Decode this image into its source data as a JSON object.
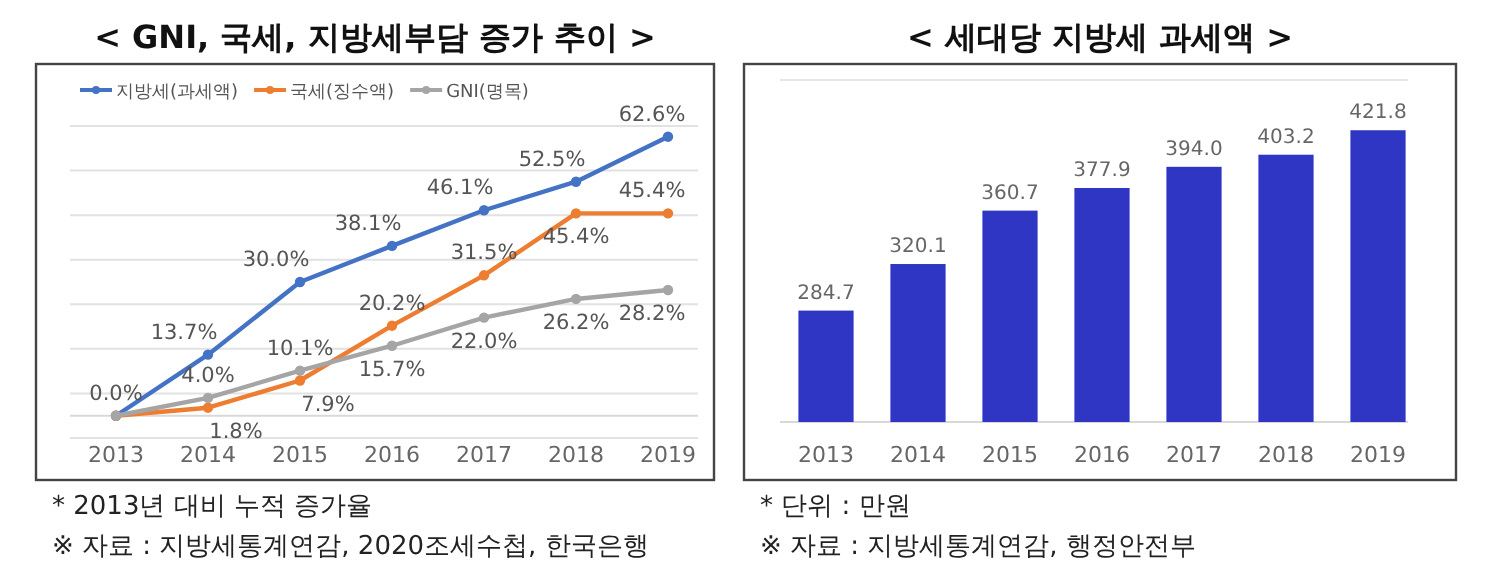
{
  "chart_data": [
    {
      "type": "line",
      "title": "< GNI, 국세, 지방세부담 증가 추이 >",
      "categories": [
        "2013",
        "2014",
        "2015",
        "2016",
        "2017",
        "2018",
        "2019"
      ],
      "series": [
        {
          "name": "지방세(과세액)",
          "color": "#4472c4",
          "values": [
            0.0,
            13.7,
            30.0,
            38.1,
            46.1,
            52.5,
            62.6
          ],
          "value_labels": [
            "0.0%",
            "13.7%",
            "30.0%",
            "38.1%",
            "46.1%",
            "52.5%",
            "62.6%"
          ]
        },
        {
          "name": "국세(징수액)",
          "color": "#ed7d31",
          "values": [
            0.0,
            1.8,
            7.9,
            20.2,
            31.5,
            45.4,
            45.4
          ],
          "value_labels": [
            null,
            "1.8%",
            "7.9%",
            "20.2%",
            "31.5%",
            "45.4%",
            "45.4%"
          ]
        },
        {
          "name": "GNI(명목)",
          "color": "#a5a5a5",
          "values": [
            0.0,
            4.0,
            10.1,
            15.7,
            22.0,
            26.2,
            28.2
          ],
          "value_labels": [
            null,
            "4.0%",
            "10.1%",
            "15.7%",
            "22.0%",
            "26.2%",
            "28.2%"
          ]
        }
      ],
      "ylim": [
        -5,
        65
      ],
      "yticks": [
        {
          "value": -5,
          "label": null
        },
        {
          "value": 5,
          "label": null
        },
        {
          "value": 15,
          "label": null
        },
        {
          "value": 25,
          "label": null
        },
        {
          "value": 35,
          "label": null
        },
        {
          "value": 45,
          "label": null
        },
        {
          "value": 55,
          "label": null
        },
        {
          "value": 65,
          "label": null
        }
      ],
      "tick_labels": "x",
      "grid": "y",
      "legend": "top left",
      "marker": "circle",
      "annotations": [
        "* 2013년 대비 누적 증가율",
        "※ 자료 : 지방세통계연감, 2020조세수첩, 한국은행"
      ]
    },
    {
      "type": "bar",
      "title": "< 세대당 지방세 과세액 >",
      "categories": [
        "2013",
        "2014",
        "2015",
        "2016",
        "2017",
        "2018",
        "2019"
      ],
      "values": [
        284.7,
        320.1,
        360.7,
        377.9,
        394.0,
        403.2,
        421.8
      ],
      "value_labels": [
        "284.7",
        "320.1",
        "360.7",
        "377.9",
        "394.0",
        "403.2",
        "421.8"
      ],
      "color": "#2f36c4",
      "ylim": [
        200,
        460
      ],
      "tick_labels": "x",
      "annotations": [
        "* 단위 : 만원",
        "※ 자료 : 지방세통계연감, 행정안전부"
      ]
    }
  ]
}
